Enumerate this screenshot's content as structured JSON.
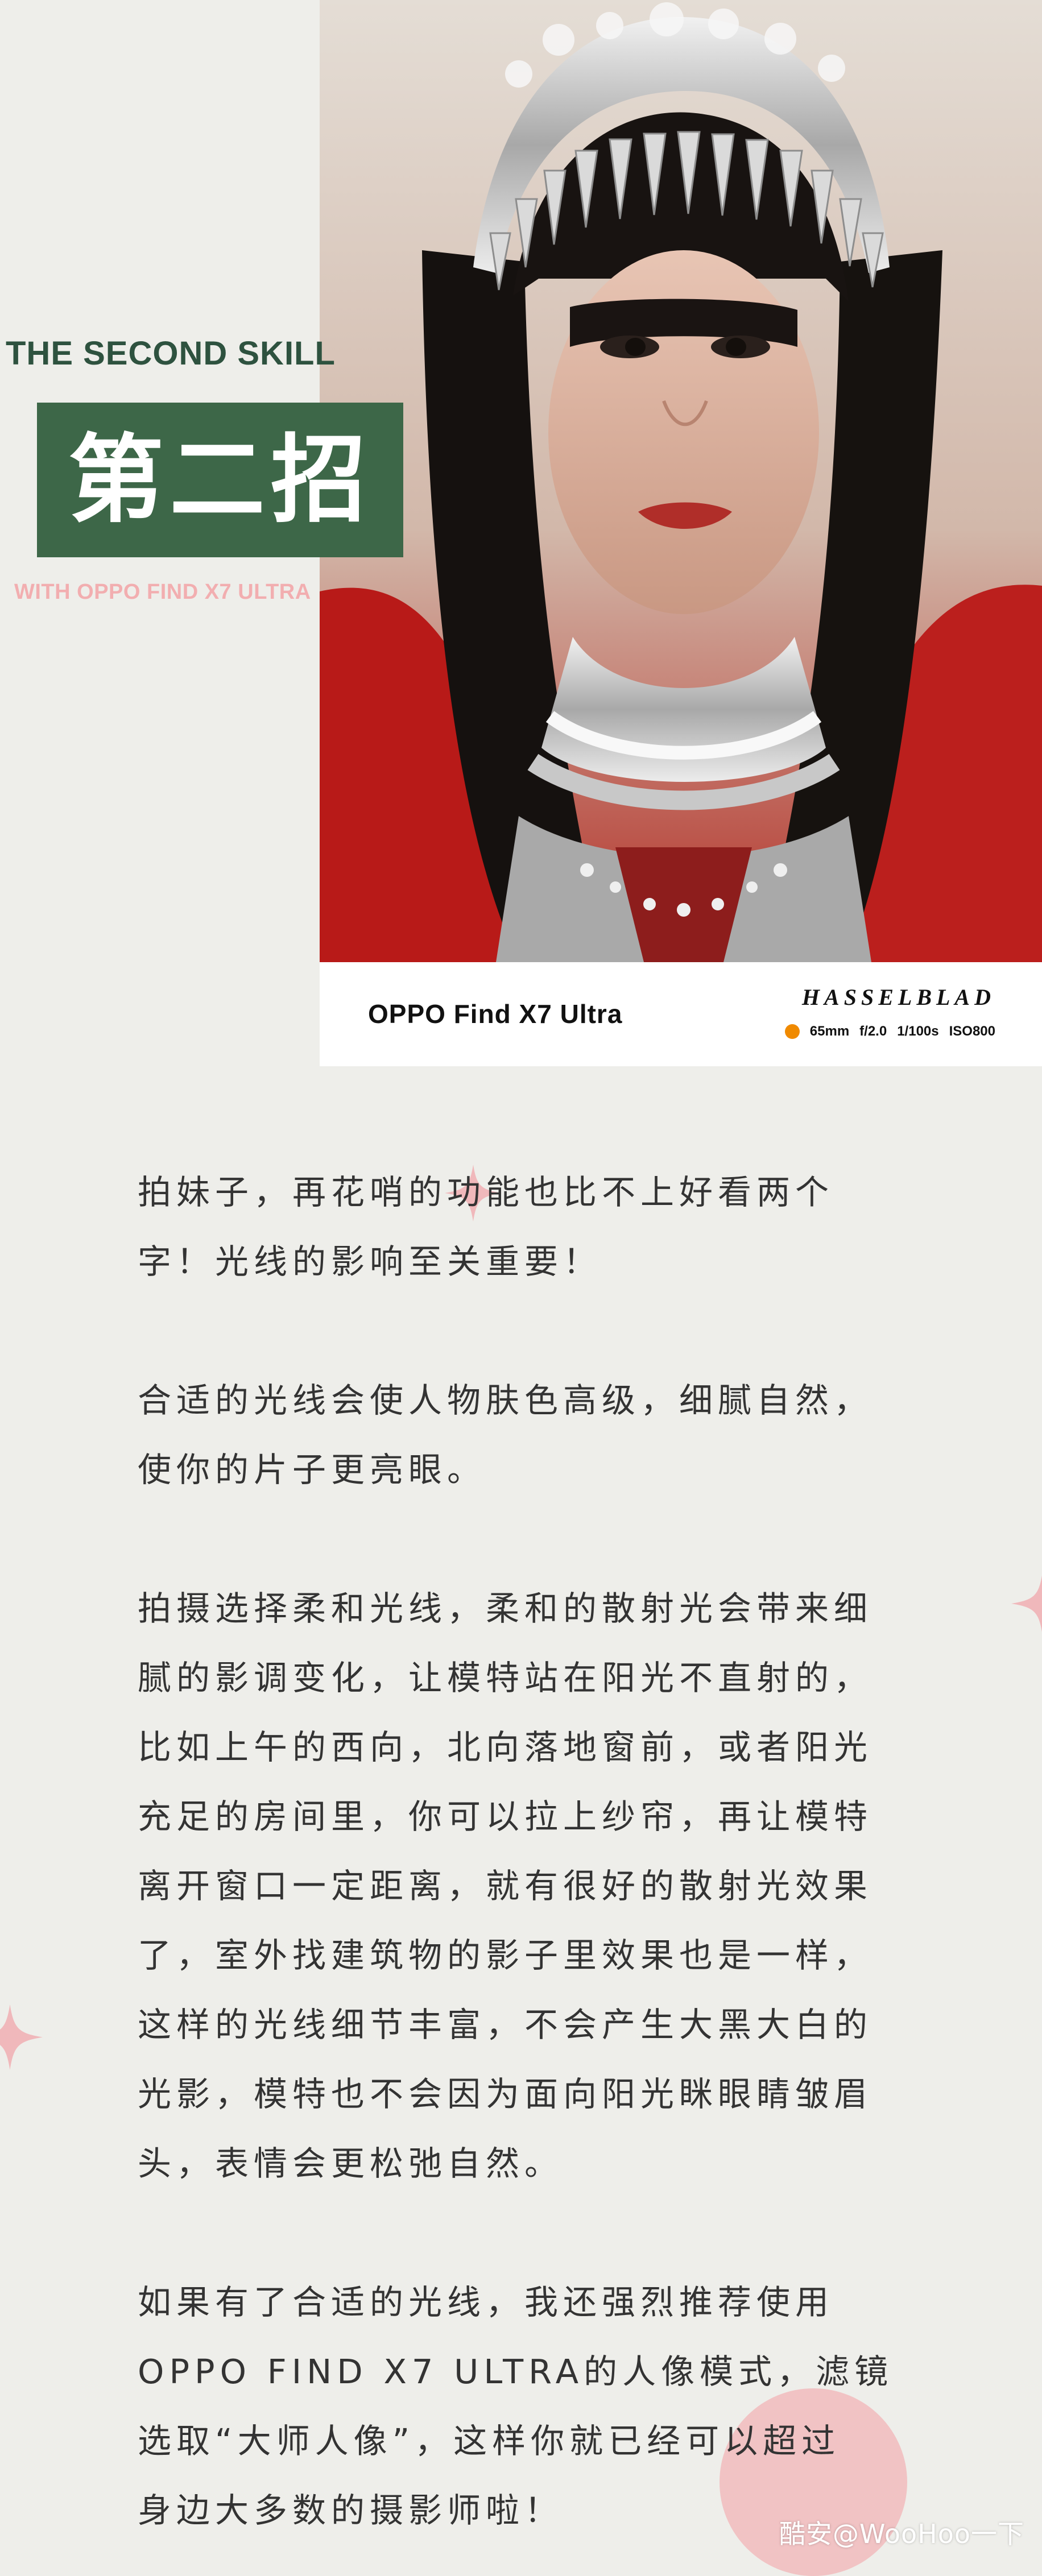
{
  "header": {
    "skill_title": "THE SECOND SKILL",
    "chapter_title": "第二招",
    "subtitle": "WITH  OPPO FIND X7 ULTRA"
  },
  "photo": {
    "model_name": "OPPO Find X7 Ultra",
    "brand": "HASSELBLAD",
    "params": [
      "65mm",
      "f/2.0",
      "1/100s",
      "ISO800"
    ]
  },
  "body": {
    "paragraphs": [
      "拍妹子，再花哨的功能也比不上好看两个\n字！光线的影响至关重要！",
      "合适的光线会使人物肤色高级，细腻自然，\n使你的片子更亮眼。",
      "拍摄选择柔和光线，柔和的散射光会带来细\n腻的影调变化，让模特站在阳光不直射的，\n比如上午的西向，北向落地窗前，或者阳光\n充足的房间里，你可以拉上纱帘，再让模特\n离开窗口一定距离，就有很好的散射光效果\n了，室外找建筑物的影子里效果也是一样，\n这样的光线细节丰富，不会产生大黑大白的\n光影，模特也不会因为面向阳光眯眼睛皱眉\n头，表情会更松弛自然。",
      "如果有了合适的光线，我还强烈推荐使用\nOPPO FIND X7 ULTRA的人像模式，滤镜\n选取“大师人像”，这样你就已经可以超过\n身边大多数的摄影师啦！"
    ]
  },
  "watermark": "酷安@WooHoo一下",
  "colors": {
    "background": "#eeeeea",
    "green_box": "#3d6748",
    "title_green": "#2e523f",
    "pink": "#f2aeb0",
    "orange_dot": "#f08a00"
  }
}
